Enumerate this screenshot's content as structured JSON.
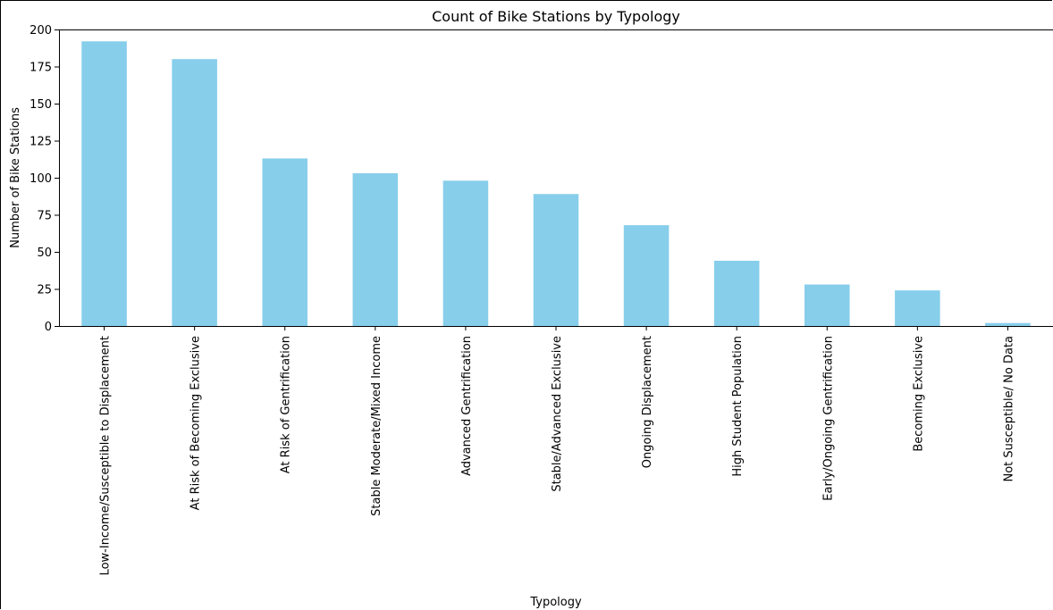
{
  "chart_data": {
    "type": "bar",
    "title": "Count of Bike Stations by Typology",
    "xlabel": "Typology",
    "ylabel": "Number of Bike Stations",
    "categories": [
      "Low-Income/Susceptible to Displacement",
      "At Risk of Becoming Exclusive",
      "At Risk of Gentrification",
      "Stable Moderate/Mixed Income",
      "Advanced Gentrification",
      "Stable/Advanced Exclusive",
      "Ongoing Displacement",
      "High Student Population",
      "Early/Ongoing Gentrification",
      "Becoming Exclusive",
      "Not Susceptible/ No Data"
    ],
    "values": [
      192,
      180,
      113,
      103,
      98,
      89,
      68,
      44,
      28,
      24,
      2
    ],
    "ylim": [
      0,
      200
    ],
    "yticks": [
      "0",
      "25",
      "50",
      "75",
      "100",
      "125",
      "150",
      "175",
      "200"
    ],
    "bar_color": "#87CEEB",
    "grid": false,
    "legend": "none"
  }
}
